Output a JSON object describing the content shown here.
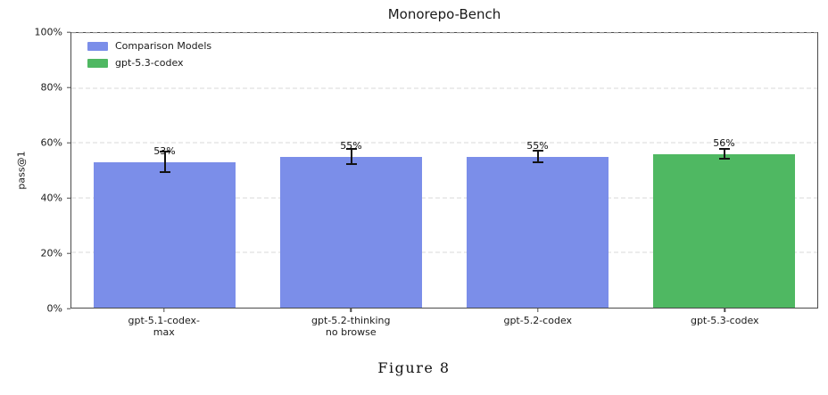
{
  "figure": {
    "caption": "Figure 8"
  },
  "colors": {
    "comparison_blue": "#7b8ee9",
    "highlight_green": "#4fb862",
    "gridline": "#d9d9d9",
    "spine": "#4a4a4a",
    "error_bar": "#141414",
    "text": "#1a1a1a",
    "background": "#ffffff"
  },
  "chart_data": {
    "type": "bar",
    "title": "Monorepo-Bench",
    "xlabel": "",
    "ylabel": "pass@1",
    "ylim": [
      0,
      100
    ],
    "yticks": [
      0,
      20,
      40,
      60,
      80,
      100
    ],
    "ytick_labels": [
      "0%",
      "20%",
      "40%",
      "60%",
      "80%",
      "100%"
    ],
    "grid": "horizontal-dashed",
    "legend_position": "upper-left-inside",
    "legend": [
      {
        "label": "Comparison Models",
        "color": "#7b8ee9"
      },
      {
        "label": "gpt-5.3-codex",
        "color": "#4fb862"
      }
    ],
    "categories": [
      "gpt-5.1-codex-max",
      "gpt-5.2-thinking no browse",
      "gpt-5.2-codex",
      "gpt-5.3-codex"
    ],
    "category_lines": [
      [
        "gpt-5.1-codex-",
        "max"
      ],
      [
        "gpt-5.2-thinking",
        "no browse"
      ],
      [
        "gpt-5.2-codex"
      ],
      [
        "gpt-5.3-codex"
      ]
    ],
    "values": [
      53,
      55,
      55,
      56
    ],
    "value_labels": [
      "53%",
      "55%",
      "55%",
      "56%"
    ],
    "errors": [
      4,
      3,
      2.5,
      2
    ],
    "bar_colors": [
      "#7b8ee9",
      "#7b8ee9",
      "#7b8ee9",
      "#4fb862"
    ]
  }
}
